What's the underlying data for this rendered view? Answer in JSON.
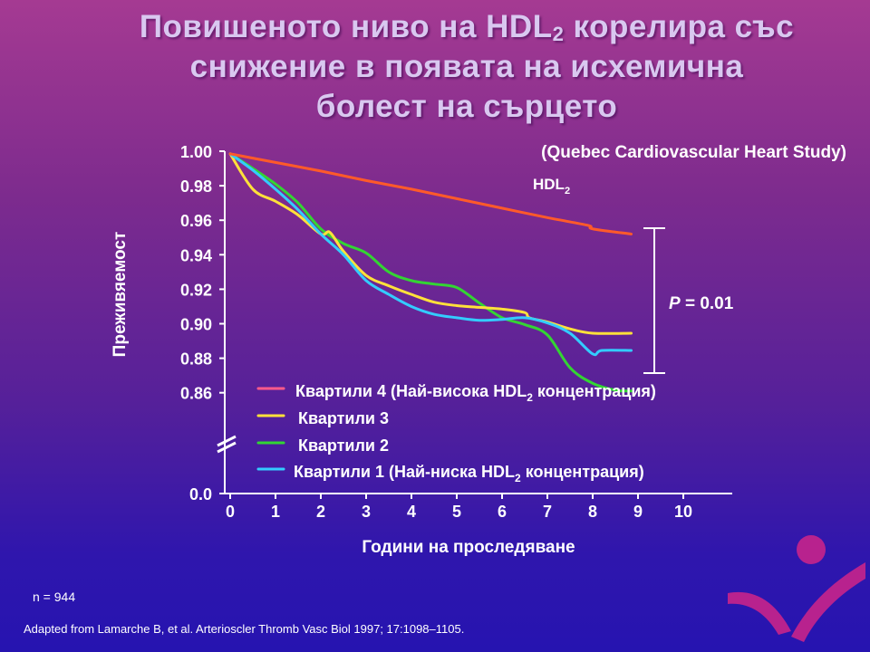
{
  "title": {
    "line1_pre": "Повишеното ниво на HDL",
    "line1_sub": "2",
    "line1_post": " корелира със",
    "line2": "снижение в появата на исхемична",
    "line3": "болест на сърцето"
  },
  "study_label": "(Quebec Cardiovascular Heart Study)",
  "hdl_label": "HDL",
  "hdl_label_sub": "2",
  "p_label": "P",
  "p_value": " = 0.01",
  "n_label": "n = 944",
  "source": "Adapted from Lamarche B, et al. Arterioscler Thromb Vasc Biol 1997; 17:1098–1105.",
  "legend": [
    {
      "pre": "Квартили 4 (Най-висока HDL",
      "sub": "2",
      "post": " концентрация)",
      "color": "#ff5a8a"
    },
    {
      "pre": "Квартили 3",
      "sub": "",
      "post": "",
      "color": "#ffe13a"
    },
    {
      "pre": "Квартили 2",
      "sub": "",
      "post": "",
      "color": "#33d533"
    },
    {
      "pre": "Квартили 1 (Най-ниска HDL",
      "sub": "2",
      "post": " концентрация)",
      "color": "#33ccff"
    }
  ],
  "chart_data": {
    "type": "line",
    "xlabel": "Години на проследяване",
    "ylabel": "Преживяемост",
    "xlim": [
      0,
      10
    ],
    "x_ticks": [
      "0",
      "1",
      "2",
      "3",
      "4",
      "5",
      "6",
      "7",
      "8",
      "9",
      "10"
    ],
    "y_ticks": [
      "1.00",
      "0.98",
      "0.96",
      "0.94",
      "0.92",
      "0.90",
      "0.88",
      "0.86"
    ],
    "y_bottom_tick": "0.0",
    "ylim_upper": [
      0.86,
      1.0
    ],
    "axis_break": true,
    "series": [
      {
        "name": "Квартили 4 (Най-висока HDL2 концентрация)",
        "color": "#ff5a2a",
        "points": [
          [
            0,
            0.9985
          ],
          [
            1,
            0.9935
          ],
          [
            2,
            0.9885
          ],
          [
            3,
            0.983
          ],
          [
            4,
            0.978
          ],
          [
            5,
            0.9725
          ],
          [
            6,
            0.967
          ],
          [
            7,
            0.9615
          ],
          [
            7.9,
            0.957
          ],
          [
            8,
            0.955
          ],
          [
            8.85,
            0.952
          ]
        ]
      },
      {
        "name": "Квартили 3",
        "color": "#ffe13a",
        "points": [
          [
            0,
            0.9985
          ],
          [
            0.5,
            0.978
          ],
          [
            1,
            0.971
          ],
          [
            1.5,
            0.963
          ],
          [
            2,
            0.952
          ],
          [
            2.2,
            0.953
          ],
          [
            2.5,
            0.942
          ],
          [
            3,
            0.928
          ],
          [
            3.5,
            0.922
          ],
          [
            4,
            0.917
          ],
          [
            4.5,
            0.9125
          ],
          [
            5,
            0.9105
          ],
          [
            5.5,
            0.9095
          ],
          [
            6,
            0.9085
          ],
          [
            6.5,
            0.9065
          ],
          [
            6.6,
            0.9035
          ],
          [
            7,
            0.901
          ],
          [
            7.5,
            0.897
          ],
          [
            8,
            0.8945
          ],
          [
            8.85,
            0.8945
          ]
        ]
      },
      {
        "name": "Квартили 2",
        "color": "#33d533",
        "points": [
          [
            0,
            0.9985
          ],
          [
            0.5,
            0.99
          ],
          [
            1,
            0.981
          ],
          [
            1.5,
            0.97
          ],
          [
            2,
            0.955
          ],
          [
            2.5,
            0.9465
          ],
          [
            3,
            0.941
          ],
          [
            3.5,
            0.93
          ],
          [
            4,
            0.925
          ],
          [
            4.5,
            0.923
          ],
          [
            5,
            0.921
          ],
          [
            5.5,
            0.912
          ],
          [
            6,
            0.9035
          ],
          [
            6.5,
            0.8995
          ],
          [
            7,
            0.8935
          ],
          [
            7.5,
            0.8745
          ],
          [
            8,
            0.8655
          ],
          [
            8.5,
            0.8615
          ],
          [
            8.85,
            0.861
          ]
        ]
      },
      {
        "name": "Квартили 1 (Най-ниска HDL2 концентрация)",
        "color": "#33ccff",
        "points": [
          [
            0,
            0.9985
          ],
          [
            0.5,
            0.989
          ],
          [
            1,
            0.978
          ],
          [
            1.5,
            0.966
          ],
          [
            2,
            0.952
          ],
          [
            2.5,
            0.94
          ],
          [
            3,
            0.925
          ],
          [
            3.5,
            0.917
          ],
          [
            4,
            0.91
          ],
          [
            4.5,
            0.9055
          ],
          [
            5,
            0.9035
          ],
          [
            5.5,
            0.902
          ],
          [
            6,
            0.9025
          ],
          [
            6.5,
            0.9035
          ],
          [
            7,
            0.9005
          ],
          [
            7.5,
            0.8945
          ],
          [
            8,
            0.8825
          ],
          [
            8.2,
            0.8845
          ],
          [
            8.85,
            0.8845
          ]
        ]
      }
    ]
  },
  "colors": {
    "axis": "#ffffff",
    "text": "#ffffff",
    "title": "#d9c8f0",
    "logo": "#b8228e"
  }
}
